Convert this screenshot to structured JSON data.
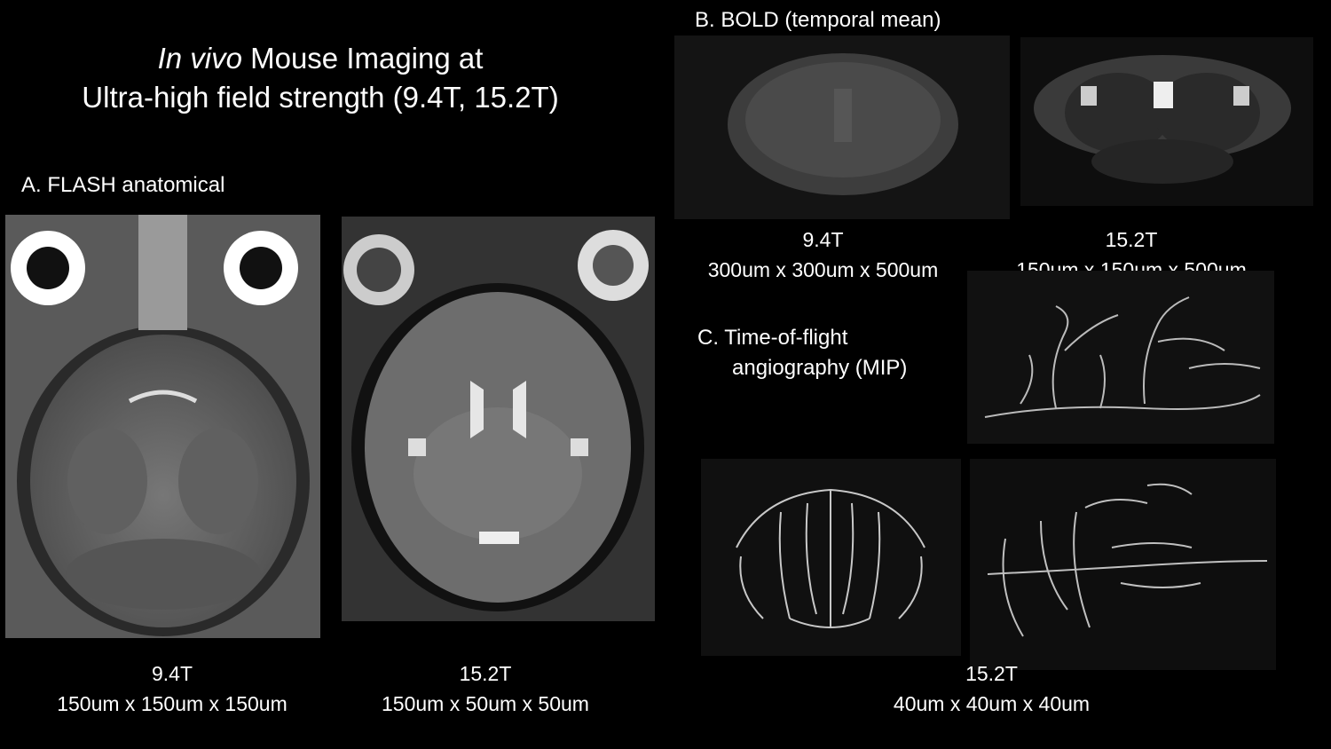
{
  "title": {
    "italic": "In vivo",
    "rest": " Mouse Imaging at",
    "line2": "Ultra-high field strength (9.4T, 15.2T)"
  },
  "section_a": {
    "label": "A. FLASH anatomical",
    "left_caption": [
      "9.4T",
      "150um x 150um x 150um"
    ],
    "right_caption": [
      "15.2T",
      "150um x 50um x 50um"
    ]
  },
  "section_b": {
    "label": "B.  BOLD (temporal mean)",
    "left_caption": [
      "9.4T",
      "300um x 300um x 500um"
    ],
    "right_caption": [
      "15.2T",
      "150um x 150um x 500um"
    ]
  },
  "section_c": {
    "label_line1": "C. Time-of-flight",
    "label_line2": "angiography (MIP)",
    "caption": [
      "15.2T",
      "40um x 40um x 40um"
    ]
  }
}
